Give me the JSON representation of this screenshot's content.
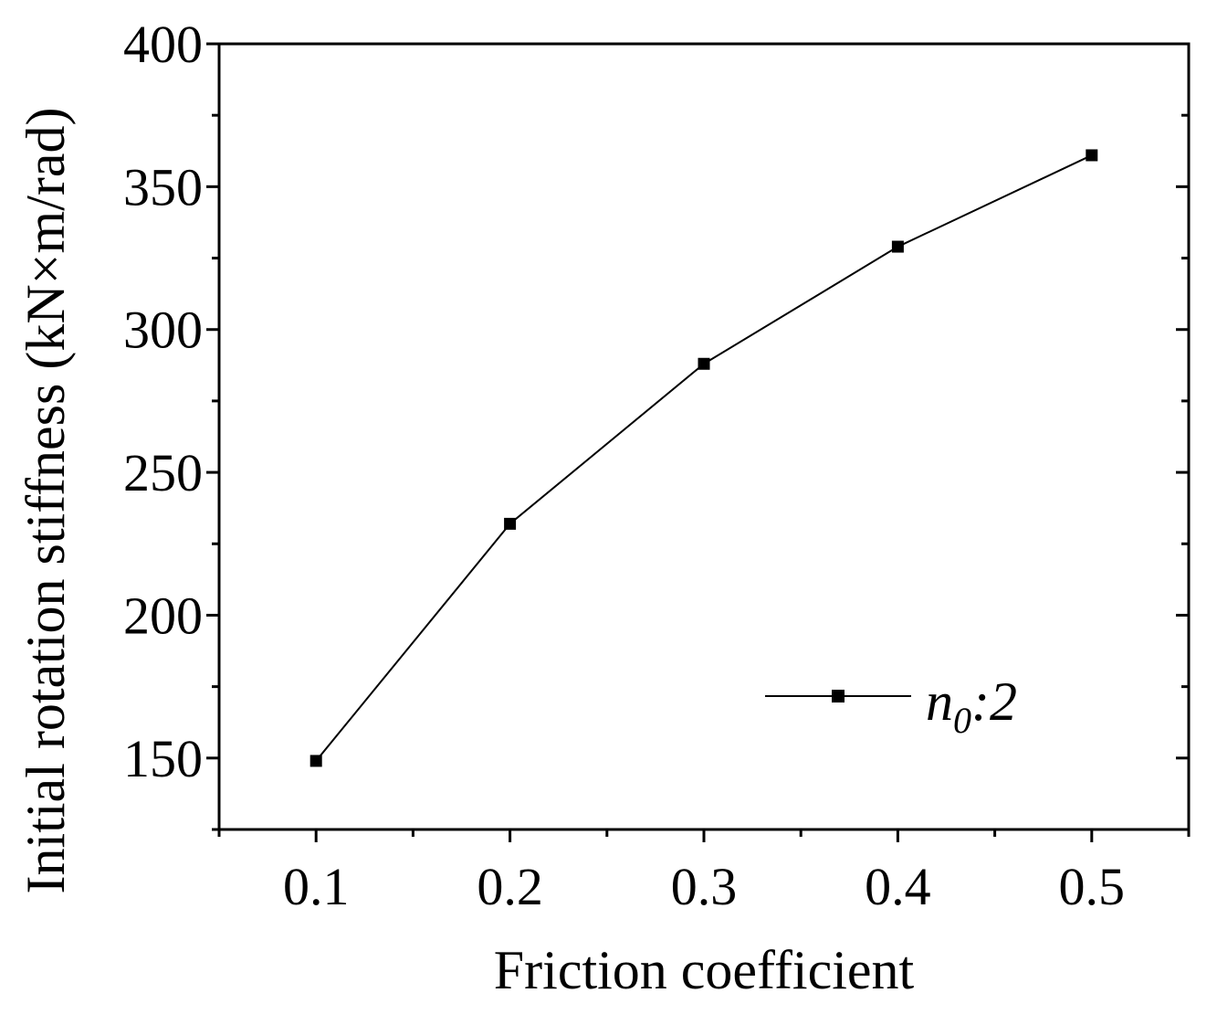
{
  "chart_data": {
    "type": "line",
    "xlabel": "Friction coefficient",
    "ylabel": "Initial rotation stiffness (kN×m/rad)",
    "xlim": [
      0.05,
      0.55
    ],
    "ylim": [
      125,
      400
    ],
    "x_ticks": [
      "0.1",
      "0.2",
      "0.3",
      "0.4",
      "0.5"
    ],
    "y_ticks": [
      "150",
      "200",
      "250",
      "300",
      "350",
      "400"
    ],
    "grid": false,
    "legend_position": "bottom-right",
    "series": [
      {
        "name_main": "n",
        "name_sub": "0",
        "name_rest": ":2",
        "marker": "square",
        "color": "#000000",
        "x": [
          0.1,
          0.2,
          0.3,
          0.4,
          0.5
        ],
        "y": [
          149,
          232,
          288,
          329,
          361
        ]
      }
    ]
  }
}
